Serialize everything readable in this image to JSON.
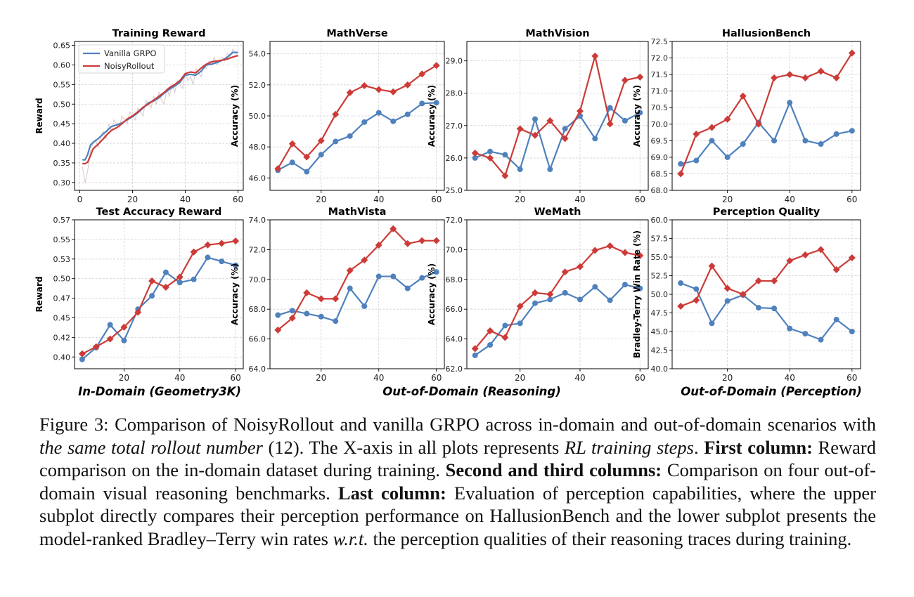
{
  "colors": {
    "vanilla": "#4f81bd",
    "noisy": "#cc3b37",
    "raw": "#d9c7c9",
    "grid": "#d0d0d0"
  },
  "legend": {
    "vanilla": "Vanilla GRPO",
    "noisy": "NoisyRollout"
  },
  "group_labels": {
    "in_domain": "In-Domain (Geometry3K)",
    "ood_reasoning": "Out-of-Domain (Reasoning)",
    "ood_perception": "Out-of-Domain (Perception)"
  },
  "caption": {
    "p1": "Figure 3: Comparison of NoisyRollout and vanilla GRPO across in-domain and out-of-domain scenarios with ",
    "i1": "the same total rollout number",
    "p2": " (12). The X-axis in all plots represents ",
    "i2": "RL training steps",
    "p3": ". ",
    "b1": "First column:",
    "p4": " Reward comparison on the in-domain dataset during training. ",
    "b2": "Second and third columns:",
    "p5": " Comparison on four out-of-domain visual reasoning benchmarks. ",
    "b3": "Last column:",
    "p6": " Evaluation of perception capabilities, where the upper subplot directly compares their perception performance on HallusionBench and the lower subplot presents the model-ranked Bradley–Terry win rates ",
    "i3": "w.r.t.",
    "p7": " the perception qualities of their reasoning traces during training."
  },
  "chart_data": [
    {
      "id": "training-reward",
      "type": "line",
      "title": "Training Reward",
      "ylabel": "Reward",
      "xlim": [
        -2,
        62
      ],
      "ylim": [
        0.28,
        0.66
      ],
      "xticks": [
        "0",
        "20",
        "40",
        "60"
      ],
      "yticks": [
        "0.30",
        "0.35",
        "0.40",
        "0.45",
        "0.50",
        "0.55",
        "0.60",
        "0.65"
      ],
      "legend": true,
      "grid": true,
      "raw_series": {
        "x": [
          1,
          2,
          3,
          4,
          5,
          6,
          7,
          8,
          9,
          10,
          11,
          12,
          13,
          14,
          15,
          16,
          17,
          18,
          19,
          20,
          21,
          22,
          23,
          24,
          25,
          26,
          27,
          28,
          29,
          30,
          31,
          32,
          33,
          34,
          35,
          36,
          37,
          38,
          39,
          40,
          41,
          42,
          43,
          44,
          45,
          46,
          47,
          48,
          49,
          50,
          51,
          52,
          53,
          54,
          55,
          56,
          57,
          58,
          59,
          60
        ],
        "values": [
          0.34,
          0.3,
          0.33,
          0.38,
          0.4,
          0.41,
          0.39,
          0.42,
          0.43,
          0.41,
          0.45,
          0.43,
          0.46,
          0.45,
          0.44,
          0.47,
          0.46,
          0.45,
          0.48,
          0.47,
          0.46,
          0.49,
          0.48,
          0.47,
          0.51,
          0.5,
          0.49,
          0.52,
          0.5,
          0.53,
          0.51,
          0.5,
          0.54,
          0.52,
          0.55,
          0.53,
          0.56,
          0.55,
          0.54,
          0.58,
          0.56,
          0.57,
          0.55,
          0.59,
          0.58,
          0.57,
          0.6,
          0.59,
          0.61,
          0.6,
          0.62,
          0.6,
          0.61,
          0.62,
          0.61,
          0.63,
          0.62,
          0.64,
          0.63,
          0.62
        ]
      },
      "series": [
        {
          "name": "Vanilla GRPO",
          "x": [
            1,
            2,
            3,
            4,
            5,
            6,
            7,
            8,
            9,
            10,
            12,
            14,
            16,
            18,
            20,
            22,
            24,
            26,
            28,
            30,
            32,
            34,
            36,
            38,
            40,
            42,
            44,
            46,
            48,
            50,
            52,
            54,
            56,
            58,
            60
          ],
          "values": [
            0.358,
            0.358,
            0.372,
            0.395,
            0.402,
            0.407,
            0.412,
            0.418,
            0.425,
            0.43,
            0.443,
            0.447,
            0.452,
            0.46,
            0.468,
            0.478,
            0.49,
            0.503,
            0.508,
            0.516,
            0.528,
            0.538,
            0.546,
            0.556,
            0.574,
            0.576,
            0.574,
            0.584,
            0.6,
            0.602,
            0.606,
            0.612,
            0.62,
            0.632,
            0.632
          ]
        },
        {
          "name": "NoisyRollout",
          "x": [
            1,
            2,
            3,
            4,
            5,
            6,
            7,
            8,
            9,
            10,
            12,
            14,
            16,
            18,
            20,
            22,
            24,
            26,
            28,
            30,
            32,
            34,
            36,
            38,
            40,
            42,
            44,
            46,
            48,
            50,
            52,
            54,
            56,
            58,
            60
          ],
          "values": [
            0.348,
            0.348,
            0.352,
            0.368,
            0.385,
            0.392,
            0.398,
            0.405,
            0.412,
            0.42,
            0.433,
            0.44,
            0.45,
            0.462,
            0.47,
            0.48,
            0.492,
            0.5,
            0.51,
            0.52,
            0.53,
            0.542,
            0.55,
            0.56,
            0.578,
            0.582,
            0.58,
            0.592,
            0.602,
            0.608,
            0.61,
            0.612,
            0.615,
            0.62,
            0.624
          ]
        }
      ]
    },
    {
      "id": "mathverse",
      "type": "line",
      "title": "MathVerse",
      "ylabel": "Accuracy (%)",
      "xlim": [
        2.25,
        62.75
      ],
      "ylim": [
        45.2,
        54.8
      ],
      "xticks": [
        "20",
        "40",
        "60"
      ],
      "yticks": [
        "46.0",
        "48.0",
        "50.0",
        "52.0",
        "54.0"
      ],
      "grid": true,
      "x": [
        5,
        10,
        15,
        20,
        25,
        30,
        35,
        40,
        45,
        50,
        55,
        60
      ],
      "series": [
        {
          "name": "Vanilla GRPO",
          "values": [
            46.5,
            47.0,
            46.4,
            47.5,
            48.35,
            48.7,
            49.6,
            50.2,
            49.65,
            50.1,
            50.8,
            50.85
          ]
        },
        {
          "name": "NoisyRollout",
          "values": [
            46.6,
            48.2,
            47.35,
            48.4,
            50.1,
            51.5,
            51.95,
            51.7,
            51.55,
            52.0,
            52.7,
            53.25
          ]
        }
      ]
    },
    {
      "id": "mathvision",
      "type": "line",
      "title": "MathVision",
      "ylabel": "Accuracy (%)",
      "xlim": [
        2.25,
        62.75
      ],
      "ylim": [
        25.0,
        29.6
      ],
      "xticks": [
        "20",
        "40",
        "60"
      ],
      "yticks": [
        "25.0",
        "26.0",
        "27.0",
        "28.0",
        "29.0"
      ],
      "grid": true,
      "x": [
        5,
        10,
        15,
        20,
        25,
        30,
        35,
        40,
        45,
        50,
        55,
        60
      ],
      "series": [
        {
          "name": "Vanilla GRPO",
          "values": [
            26.0,
            26.2,
            26.1,
            25.65,
            27.2,
            25.65,
            26.9,
            27.3,
            26.6,
            27.55,
            27.15,
            27.4
          ]
        },
        {
          "name": "NoisyRollout",
          "values": [
            26.15,
            26.0,
            25.45,
            26.9,
            26.7,
            27.15,
            26.6,
            27.45,
            29.15,
            27.05,
            28.4,
            28.5
          ]
        }
      ]
    },
    {
      "id": "hallusionbench",
      "type": "line",
      "title": "HallusionBench",
      "ylabel": "Accuracy (%)",
      "xlim": [
        2.25,
        62.75
      ],
      "ylim": [
        68.0,
        72.5
      ],
      "xticks": [
        "20",
        "40",
        "60"
      ],
      "yticks": [
        "68.0",
        "68.5",
        "69.0",
        "69.5",
        "70.0",
        "70.5",
        "71.0",
        "71.5",
        "72.0",
        "72.5"
      ],
      "grid": true,
      "x": [
        5,
        10,
        15,
        20,
        25,
        30,
        35,
        40,
        45,
        50,
        55,
        60
      ],
      "series": [
        {
          "name": "Vanilla GRPO",
          "values": [
            68.8,
            68.9,
            69.5,
            69.0,
            69.4,
            70.05,
            69.5,
            70.65,
            69.5,
            69.4,
            69.7,
            69.8
          ]
        },
        {
          "name": "NoisyRollout",
          "values": [
            68.5,
            69.7,
            69.9,
            70.15,
            70.85,
            70.0,
            71.4,
            71.5,
            71.4,
            71.6,
            71.4,
            72.15
          ]
        }
      ]
    },
    {
      "id": "test-accuracy-reward",
      "type": "line",
      "title": "Test Accuracy Reward",
      "ylabel": "Reward",
      "xlim": [
        2.25,
        62.75
      ],
      "ylim": [
        0.385,
        0.575
      ],
      "xticks": [
        "20",
        "40",
        "60"
      ],
      "yticks": [
        "0.40",
        "0.42",
        "0.45",
        "0.47",
        "0.50",
        "0.53",
        "0.55",
        "0.57"
      ],
      "ytick_values": [
        0.4,
        0.425,
        0.45,
        0.475,
        0.5,
        0.525,
        0.55,
        0.575
      ],
      "grid": true,
      "x": [
        5,
        10,
        15,
        20,
        25,
        30,
        35,
        40,
        45,
        50,
        55,
        60
      ],
      "series": [
        {
          "name": "Vanilla GRPO",
          "values": [
            0.397,
            0.412,
            0.441,
            0.421,
            0.461,
            0.478,
            0.508,
            0.495,
            0.499,
            0.527,
            0.522,
            0.517
          ]
        },
        {
          "name": "NoisyRollout",
          "values": [
            0.404,
            0.413,
            0.423,
            0.438,
            0.457,
            0.497,
            0.489,
            0.502,
            0.534,
            0.543,
            0.545,
            0.548
          ]
        }
      ]
    },
    {
      "id": "mathvista",
      "type": "line",
      "title": "MathVista",
      "ylabel": "Accuracy (%)",
      "xlim": [
        2.25,
        62.75
      ],
      "ylim": [
        64.0,
        74.0
      ],
      "xticks": [
        "20",
        "40",
        "60"
      ],
      "yticks": [
        "64.0",
        "66.0",
        "68.0",
        "70.0",
        "72.0",
        "74.0"
      ],
      "grid": true,
      "x": [
        5,
        10,
        15,
        20,
        25,
        30,
        35,
        40,
        45,
        50,
        55,
        60
      ],
      "series": [
        {
          "name": "Vanilla GRPO",
          "values": [
            67.6,
            67.9,
            67.7,
            67.5,
            67.2,
            69.4,
            68.2,
            70.2,
            70.2,
            69.4,
            70.1,
            70.5
          ]
        },
        {
          "name": "NoisyRollout",
          "values": [
            66.6,
            67.4,
            69.1,
            68.7,
            68.7,
            70.6,
            71.3,
            72.3,
            73.4,
            72.4,
            72.6,
            72.6
          ]
        }
      ]
    },
    {
      "id": "wemath",
      "type": "line",
      "title": "WeMath",
      "ylabel": "Accuracy (%)",
      "xlim": [
        2.25,
        62.75
      ],
      "ylim": [
        62.0,
        72.0
      ],
      "xticks": [
        "20",
        "40",
        "60"
      ],
      "yticks": [
        "62.0",
        "64.0",
        "66.0",
        "68.0",
        "70.0",
        "72.0"
      ],
      "grid": true,
      "x": [
        5,
        10,
        15,
        20,
        25,
        30,
        35,
        40,
        45,
        50,
        55,
        60
      ],
      "series": [
        {
          "name": "Vanilla GRPO",
          "values": [
            62.9,
            63.6,
            64.9,
            65.05,
            66.4,
            66.65,
            67.1,
            66.65,
            67.5,
            66.6,
            67.65,
            67.4
          ]
        },
        {
          "name": "NoisyRollout",
          "values": [
            63.35,
            64.55,
            64.1,
            66.2,
            67.1,
            67.0,
            68.5,
            68.85,
            69.95,
            70.25,
            69.8,
            69.6
          ]
        }
      ]
    },
    {
      "id": "perception-quality",
      "type": "line",
      "title": "Perception Quality",
      "ylabel": "Bradley-Terry Win Rate (%)",
      "xlim": [
        2.25,
        62.75
      ],
      "ylim": [
        40.0,
        60.0
      ],
      "xticks": [
        "20",
        "40",
        "60"
      ],
      "yticks": [
        "40.0",
        "42.5",
        "45.0",
        "47.5",
        "50.0",
        "52.5",
        "55.0",
        "57.5",
        "60.0"
      ],
      "grid": true,
      "x": [
        5,
        10,
        15,
        20,
        25,
        30,
        35,
        40,
        45,
        50,
        55,
        60
      ],
      "series": [
        {
          "name": "Vanilla GRPO",
          "values": [
            51.5,
            50.7,
            46.1,
            49.1,
            49.9,
            48.2,
            48.1,
            45.4,
            44.7,
            43.9,
            46.6,
            45.0
          ]
        },
        {
          "name": "NoisyRollout",
          "values": [
            48.4,
            49.2,
            53.8,
            50.8,
            50.0,
            51.8,
            51.8,
            54.5,
            55.3,
            56.0,
            53.3,
            54.9
          ]
        }
      ]
    }
  ]
}
